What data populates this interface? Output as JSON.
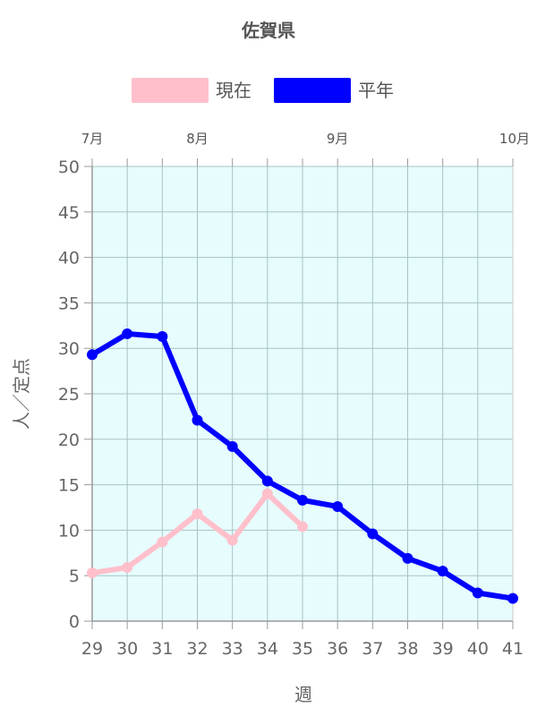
{
  "chart_data": {
    "type": "line",
    "title": "佐賀県",
    "xlabel": "週",
    "ylabel": "人／定点",
    "x": [
      29,
      30,
      31,
      32,
      33,
      34,
      35,
      36,
      37,
      38,
      39,
      40,
      41
    ],
    "ylim": [
      0,
      50
    ],
    "yticks": [
      0,
      5,
      10,
      15,
      20,
      25,
      30,
      35,
      40,
      45,
      50
    ],
    "grid": true,
    "legend_position": "top",
    "plot_background": "#e6fcfd",
    "months": [
      {
        "label": "7月",
        "week": 29
      },
      {
        "label": "8月",
        "week": 32
      },
      {
        "label": "9月",
        "week": 36
      },
      {
        "label": "10月",
        "week": 41
      }
    ],
    "series": [
      {
        "name": "現在",
        "color": "#ffc0cb",
        "values": [
          5.3,
          5.9,
          8.7,
          11.8,
          8.9,
          14.0,
          10.4,
          null,
          null,
          null,
          null,
          null,
          null
        ]
      },
      {
        "name": "平年",
        "color": "#0000ff",
        "values": [
          29.3,
          31.6,
          31.3,
          22.1,
          19.2,
          15.4,
          13.3,
          12.6,
          9.6,
          6.9,
          5.5,
          3.1,
          2.5
        ]
      }
    ]
  }
}
